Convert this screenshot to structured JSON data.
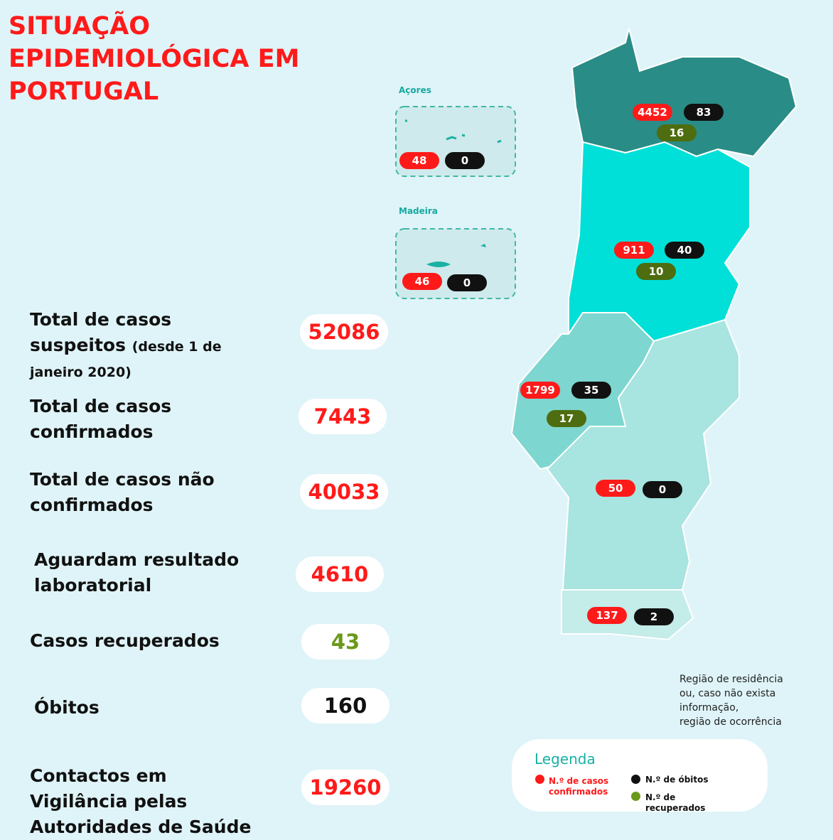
{
  "title": "SITUAÇÃO EPIDEMIOLÓGICA EM PORTUGAL",
  "stats": [
    {
      "label": "Total de casos suspeitos",
      "note": "(desde 1 de janeiro 2020)",
      "value": 52086,
      "color": "#ff1a1a"
    },
    {
      "label": "Total de casos confirmados",
      "value": 7443,
      "color": "#ff1a1a"
    },
    {
      "label": "Total de casos não confirmados",
      "value": 40033,
      "color": "#ff1a1a"
    },
    {
      "label": "Aguardam resultado laboratorial",
      "value": 4610,
      "color": "#ff1a1a"
    },
    {
      "label": "Casos recuperados",
      "value": 43,
      "color": "#6a9a1a"
    },
    {
      "label": "Óbitos",
      "value": 160,
      "color": "#111111"
    },
    {
      "label": "Contactos em Vigilância pelas Autoridades de Saúde",
      "value": 19260,
      "color": "#ff1a1a"
    }
  ],
  "islands": [
    {
      "name": "Açores",
      "cases": 48,
      "deaths": 0
    },
    {
      "name": "Madeira",
      "cases": 46,
      "deaths": 0
    }
  ],
  "regions": [
    {
      "cases": 4452,
      "deaths": 83,
      "recovered": 16
    },
    {
      "cases": 911,
      "deaths": 40,
      "recovered": 10
    },
    {
      "cases": 1799,
      "deaths": 35,
      "recovered": 17
    },
    {
      "cases": 50,
      "deaths": 0
    },
    {
      "cases": 137,
      "deaths": 2
    }
  ],
  "note": [
    "Região de residência",
    "ou, caso não exista informação,",
    "região de ocorrência"
  ],
  "legend": {
    "title": "Legenda",
    "cases": "N.º de casos confirmados",
    "deaths": "N.º de óbitos",
    "recovered": "N.º de recuperados"
  }
}
